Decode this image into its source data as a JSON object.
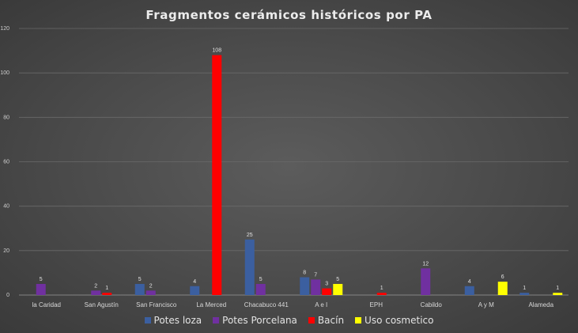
{
  "chart_data": {
    "type": "bar",
    "title": "Fragmentos cerámicos históricos por PA",
    "xlabel": "",
    "ylabel": "",
    "ylim": [
      0,
      120
    ],
    "yticks": [
      0,
      20,
      40,
      60,
      80,
      100,
      120
    ],
    "grid": true,
    "legend_position": "bottom",
    "categories": [
      "la Caridad",
      "San Agustín",
      "San Francisco",
      "La Merced",
      "Chacabuco 441",
      "A e I",
      "EPH",
      "Cabildo",
      "A y M",
      "Alameda"
    ],
    "series": [
      {
        "name": "Potes loza",
        "color": "#3b5fa0",
        "values": [
          null,
          null,
          5,
          4,
          25,
          8,
          null,
          null,
          4,
          1
        ]
      },
      {
        "name": "Potes Porcelana",
        "color": "#7030a0",
        "values": [
          5,
          2,
          2,
          null,
          5,
          7,
          null,
          12,
          null,
          null
        ]
      },
      {
        "name": "Bacín",
        "color": "#ff0000",
        "values": [
          null,
          1,
          null,
          108,
          null,
          3,
          1,
          null,
          null,
          null
        ]
      },
      {
        "name": "Uso cosmetico",
        "color": "#ffff00",
        "values": [
          null,
          null,
          null,
          null,
          null,
          5,
          null,
          null,
          6,
          1
        ]
      }
    ]
  }
}
